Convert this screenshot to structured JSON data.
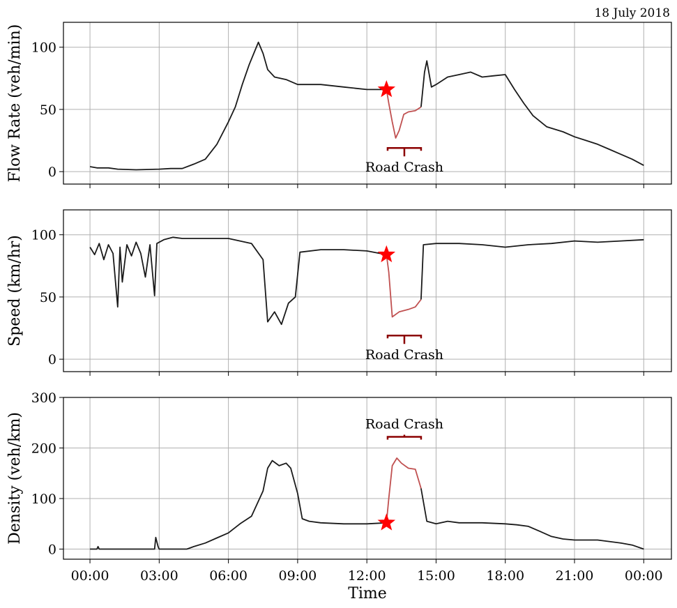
{
  "figure": {
    "date_label": "18 July 2018",
    "xlabel": "Time",
    "x_ticks": [
      "00:00",
      "03:00",
      "06:00",
      "09:00",
      "12:00",
      "15:00",
      "18:00",
      "21:00",
      "00:00"
    ],
    "incident_label": "Road Crash"
  },
  "colors": {
    "normal": "#1a1a1a",
    "incident": "#c05050",
    "bracket": "#8b0000",
    "star": "#ff0000",
    "grid": "#b0b0b0"
  },
  "chart_data": [
    {
      "type": "line",
      "ylabel": "Flow Rate (veh/min)",
      "x_unit": "hours since 00:00",
      "xlim": [
        -1.15,
        25.2
      ],
      "ylim": [
        -10,
        120
      ],
      "y_ticks": [
        0,
        50,
        100
      ],
      "grid": true,
      "incident_window": [
        12.9,
        14.35
      ],
      "incident_marker": {
        "x": 12.85,
        "y": 66
      },
      "bracket": {
        "x_start": 12.9,
        "x_end": 14.35,
        "y": 19,
        "label_side": "below"
      },
      "series": [
        {
          "points": [
            [
              0,
              4
            ],
            [
              0.3,
              3
            ],
            [
              0.8,
              3
            ],
            [
              1.2,
              2
            ],
            [
              2,
              1.5
            ],
            [
              3,
              2
            ],
            [
              3.5,
              2.5
            ],
            [
              4,
              2.5
            ],
            [
              4.5,
              6
            ],
            [
              5,
              10
            ],
            [
              5.5,
              22
            ],
            [
              6,
              40
            ],
            [
              6.3,
              52
            ],
            [
              6.6,
              70
            ],
            [
              6.9,
              86
            ],
            [
              7.1,
              95
            ],
            [
              7.3,
              104
            ],
            [
              7.5,
              95
            ],
            [
              7.7,
              82
            ],
            [
              8,
              76
            ],
            [
              8.5,
              74
            ],
            [
              9,
              70
            ],
            [
              10,
              70
            ],
            [
              11,
              68
            ],
            [
              12,
              66
            ],
            [
              12.85,
              66
            ]
          ]
        },
        {
          "incident": true,
          "points": [
            [
              12.85,
              66
            ],
            [
              12.95,
              55
            ],
            [
              13.1,
              40
            ],
            [
              13.25,
              27
            ],
            [
              13.4,
              33
            ],
            [
              13.6,
              46
            ],
            [
              13.8,
              48
            ],
            [
              14.1,
              49
            ],
            [
              14.35,
              52
            ]
          ]
        },
        {
          "points": [
            [
              14.35,
              52
            ],
            [
              14.5,
              80
            ],
            [
              14.6,
              89
            ],
            [
              14.8,
              68
            ],
            [
              15,
              70
            ],
            [
              15.5,
              76
            ],
            [
              16,
              78
            ],
            [
              16.5,
              80
            ],
            [
              17,
              76
            ],
            [
              17.5,
              77
            ],
            [
              18,
              78
            ],
            [
              18.4,
              66
            ],
            [
              18.8,
              55
            ],
            [
              19.2,
              45
            ],
            [
              19.8,
              36
            ],
            [
              20.5,
              32
            ],
            [
              21,
              28
            ],
            [
              21.5,
              25
            ],
            [
              22,
              22
            ],
            [
              22.5,
              18
            ],
            [
              23,
              14
            ],
            [
              23.5,
              10
            ],
            [
              24,
              5
            ]
          ]
        }
      ]
    },
    {
      "type": "line",
      "ylabel": "Speed (km/hr)",
      "x_unit": "hours since 00:00",
      "xlim": [
        -1.15,
        25.2
      ],
      "ylim": [
        -10,
        120
      ],
      "y_ticks": [
        0,
        50,
        100
      ],
      "grid": true,
      "incident_window": [
        12.9,
        14.35
      ],
      "incident_marker": {
        "x": 12.85,
        "y": 84
      },
      "bracket": {
        "x_start": 12.9,
        "x_end": 14.35,
        "y": 19,
        "label_side": "below"
      },
      "series": [
        {
          "points": [
            [
              0,
              90
            ],
            [
              0.2,
              84
            ],
            [
              0.4,
              93
            ],
            [
              0.6,
              80
            ],
            [
              0.8,
              92
            ],
            [
              1,
              85
            ],
            [
              1.2,
              42
            ],
            [
              1.3,
              90
            ],
            [
              1.4,
              62
            ],
            [
              1.6,
              92
            ],
            [
              1.8,
              83
            ],
            [
              2,
              94
            ],
            [
              2.2,
              85
            ],
            [
              2.4,
              66
            ],
            [
              2.6,
              92
            ],
            [
              2.8,
              51
            ],
            [
              2.9,
              93
            ],
            [
              3.2,
              96
            ],
            [
              3.6,
              98
            ],
            [
              4,
              97
            ],
            [
              5,
              97
            ],
            [
              6,
              97
            ],
            [
              7,
              93
            ],
            [
              7.5,
              80
            ],
            [
              7.7,
              30
            ],
            [
              8,
              38
            ],
            [
              8.3,
              28
            ],
            [
              8.6,
              45
            ],
            [
              8.9,
              50
            ],
            [
              9.1,
              86
            ],
            [
              10,
              88
            ],
            [
              11,
              88
            ],
            [
              12,
              87
            ],
            [
              12.85,
              84
            ]
          ]
        },
        {
          "incident": true,
          "points": [
            [
              12.85,
              84
            ],
            [
              12.95,
              70
            ],
            [
              13.1,
              34
            ],
            [
              13.4,
              38
            ],
            [
              13.8,
              40
            ],
            [
              14.1,
              42
            ],
            [
              14.35,
              48
            ]
          ]
        },
        {
          "points": [
            [
              14.35,
              48
            ],
            [
              14.45,
              92
            ],
            [
              15,
              93
            ],
            [
              16,
              93
            ],
            [
              17,
              92
            ],
            [
              18,
              90
            ],
            [
              19,
              92
            ],
            [
              20,
              93
            ],
            [
              21,
              95
            ],
            [
              22,
              94
            ],
            [
              23,
              95
            ],
            [
              24,
              96
            ]
          ]
        }
      ]
    },
    {
      "type": "line",
      "ylabel": "Density (veh/km)",
      "x_unit": "hours since 00:00",
      "xlim": [
        -1.15,
        25.2
      ],
      "ylim": [
        -20,
        300
      ],
      "y_ticks": [
        0,
        100,
        200,
        300
      ],
      "grid": true,
      "incident_window": [
        12.9,
        14.35
      ],
      "incident_marker": {
        "x": 12.85,
        "y": 52
      },
      "bracket": {
        "x_start": 12.9,
        "x_end": 14.35,
        "y": 222,
        "label_side": "above"
      },
      "series": [
        {
          "points": [
            [
              0,
              0
            ],
            [
              0.3,
              0
            ],
            [
              0.35,
              5
            ],
            [
              0.4,
              0
            ],
            [
              2.8,
              0
            ],
            [
              2.85,
              23
            ],
            [
              2.95,
              5
            ],
            [
              3,
              0
            ],
            [
              4.2,
              0
            ],
            [
              4.5,
              5
            ],
            [
              5,
              12
            ],
            [
              5.5,
              22
            ],
            [
              6,
              32
            ],
            [
              6.5,
              50
            ],
            [
              7,
              65
            ],
            [
              7.5,
              115
            ],
            [
              7.7,
              160
            ],
            [
              7.9,
              175
            ],
            [
              8.2,
              165
            ],
            [
              8.5,
              170
            ],
            [
              8.7,
              160
            ],
            [
              9,
              110
            ],
            [
              9.2,
              60
            ],
            [
              9.5,
              55
            ],
            [
              10,
              52
            ],
            [
              11,
              50
            ],
            [
              12,
              50
            ],
            [
              12.85,
              52
            ]
          ]
        },
        {
          "incident": true,
          "points": [
            [
              12.85,
              52
            ],
            [
              12.95,
              100
            ],
            [
              13.1,
              165
            ],
            [
              13.3,
              180
            ],
            [
              13.5,
              170
            ],
            [
              13.8,
              160
            ],
            [
              14.1,
              158
            ],
            [
              14.35,
              120
            ]
          ]
        },
        {
          "points": [
            [
              14.35,
              120
            ],
            [
              14.6,
              55
            ],
            [
              15,
              50
            ],
            [
              15.5,
              55
            ],
            [
              16,
              52
            ],
            [
              17,
              52
            ],
            [
              18,
              50
            ],
            [
              18.5,
              48
            ],
            [
              19,
              45
            ],
            [
              19.5,
              35
            ],
            [
              20,
              25
            ],
            [
              20.5,
              20
            ],
            [
              21,
              18
            ],
            [
              22,
              18
            ],
            [
              22.5,
              15
            ],
            [
              23,
              12
            ],
            [
              23.5,
              8
            ],
            [
              24,
              0
            ]
          ]
        }
      ]
    }
  ]
}
